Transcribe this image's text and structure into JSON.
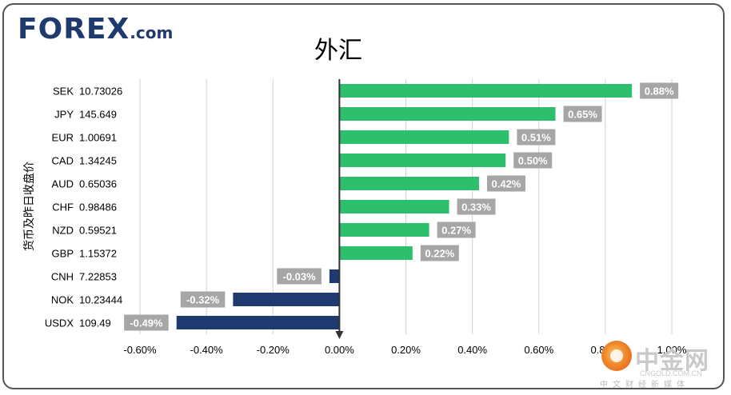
{
  "logo": {
    "main": "FOREX",
    "suffix": ".com"
  },
  "title": "外汇",
  "ylabel": "货币及昨日收盘价",
  "watermark": {
    "cn": "中金网",
    "en": "CNGOLD.COM.CN",
    "sub": "中文财经新媒体"
  },
  "colors": {
    "positive": "#2dbf6c",
    "negative": "#1f3a6e",
    "label_bg": "#a6a6a6",
    "grid": "#d0d0d0"
  },
  "chart_data": {
    "type": "bar",
    "orientation": "horizontal",
    "title": "外汇",
    "ylabel": "货币及昨日收盘价",
    "xlim": [
      -0.6,
      1.0
    ],
    "x_ticks": [
      "-0.60%",
      "-0.40%",
      "-0.20%",
      "0.00%",
      "0.20%",
      "0.40%",
      "0.60%",
      "0.80%",
      "1.00%"
    ],
    "grid": true,
    "categories": [
      {
        "code": "SEK",
        "price": "10.73026"
      },
      {
        "code": "JPY",
        "price": "145.649"
      },
      {
        "code": "EUR",
        "price": "1.00691"
      },
      {
        "code": "CAD",
        "price": "1.34245"
      },
      {
        "code": "AUD",
        "price": "0.65036"
      },
      {
        "code": "CHF",
        "price": "0.98486"
      },
      {
        "code": "NZD",
        "price": "0.59521"
      },
      {
        "code": "GBP",
        "price": "1.15372"
      },
      {
        "code": "CNH",
        "price": "7.22853"
      },
      {
        "code": "NOK",
        "price": "10.23444"
      },
      {
        "code": "USDX",
        "price": "109.49"
      }
    ],
    "values": [
      0.88,
      0.65,
      0.51,
      0.5,
      0.42,
      0.33,
      0.27,
      0.22,
      -0.03,
      -0.32,
      -0.49
    ],
    "value_labels": [
      "0.88%",
      "0.65%",
      "0.51%",
      "0.50%",
      "0.42%",
      "0.33%",
      "0.27%",
      "0.22%",
      "-0.03%",
      "-0.32%",
      "-0.49%"
    ]
  }
}
